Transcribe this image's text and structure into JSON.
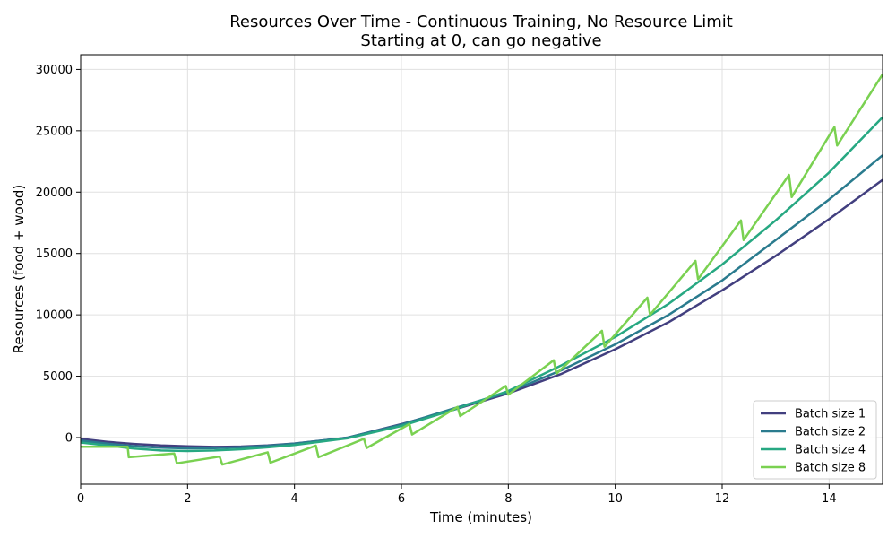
{
  "chart_data": {
    "type": "line",
    "title": "Resources Over Time - Continuous Training, No Resource Limit",
    "subtitle": "Starting at 0, can go negative",
    "xlabel": "Time (minutes)",
    "ylabel": "Resources (food + wood)",
    "xlim": [
      0,
      15
    ],
    "ylim": [
      -3800,
      31200
    ],
    "xticks": [
      0,
      2,
      4,
      6,
      8,
      10,
      12,
      14
    ],
    "yticks": [
      0,
      5000,
      10000,
      15000,
      20000,
      25000,
      30000
    ],
    "grid": true,
    "legend_position": "bottom-right",
    "series": [
      {
        "name": "Batch size 1",
        "color": "#423f7f",
        "x": [
          0,
          0.5,
          1,
          1.5,
          2,
          2.5,
          3,
          3.5,
          4,
          5,
          6,
          7,
          8,
          9,
          10,
          11,
          12,
          13,
          14,
          15
        ],
        "y": [
          -100,
          -350,
          -520,
          -640,
          -720,
          -760,
          -730,
          -640,
          -480,
          0,
          1100,
          2300,
          3600,
          5200,
          7200,
          9400,
          12000,
          14800,
          17800,
          21000
        ]
      },
      {
        "name": "Batch size 2",
        "color": "#2a7b8e",
        "x": [
          0,
          0.5,
          1,
          1.5,
          2,
          2.5,
          3,
          3.5,
          4,
          5,
          6,
          7,
          8,
          9,
          10,
          11,
          12,
          13,
          14,
          15
        ],
        "y": [
          -250,
          -500,
          -700,
          -820,
          -880,
          -860,
          -790,
          -680,
          -500,
          0,
          1050,
          2400,
          3700,
          5500,
          7600,
          10000,
          12800,
          16100,
          19400,
          23000
        ]
      },
      {
        "name": "Batch size 4",
        "color": "#27a882",
        "x": [
          0,
          0.5,
          1,
          1.5,
          2,
          2.5,
          3,
          3.5,
          4,
          5,
          6,
          7,
          8,
          9,
          10,
          11,
          12,
          13,
          14,
          15
        ],
        "y": [
          -400,
          -650,
          -900,
          -1050,
          -1100,
          -1050,
          -950,
          -800,
          -600,
          -50,
          950,
          2300,
          3800,
          5900,
          8200,
          10900,
          14100,
          17700,
          21600,
          26100
        ]
      },
      {
        "name": "Batch size 8",
        "color": "#7ad151",
        "x": [
          0,
          0.88,
          0.9,
          1.75,
          1.8,
          2.6,
          2.65,
          3.5,
          3.55,
          4.4,
          4.45,
          5.3,
          5.35,
          6.15,
          6.2,
          7.05,
          7.1,
          7.95,
          8.0,
          8.85,
          8.9,
          9.75,
          9.8,
          10.6,
          10.65,
          11.5,
          11.55,
          12.35,
          12.4,
          13.25,
          13.3,
          14.1,
          14.15,
          15
        ],
        "y": [
          -750,
          -750,
          -1600,
          -1300,
          -2100,
          -1550,
          -2200,
          -1200,
          -2050,
          -650,
          -1600,
          -100,
          -850,
          1100,
          250,
          2500,
          1750,
          4200,
          3500,
          6300,
          5200,
          8700,
          7400,
          11400,
          10000,
          14400,
          12900,
          17700,
          16100,
          21400,
          19600,
          25300,
          23800,
          29600
        ]
      }
    ]
  }
}
